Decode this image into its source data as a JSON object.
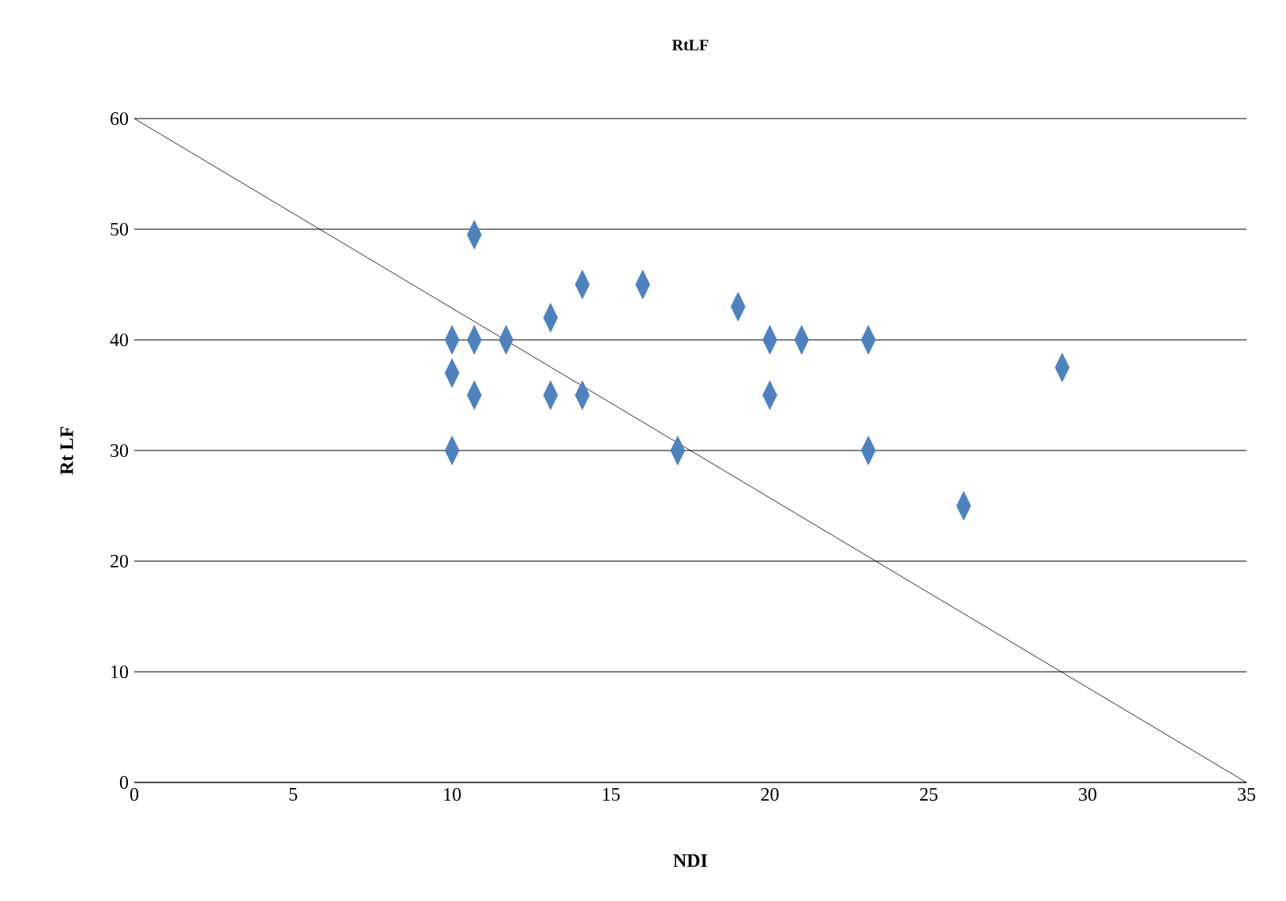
{
  "chart_data": {
    "type": "scatter",
    "title": "RtLF",
    "xlabel": "NDI",
    "ylabel": "Rt LF",
    "xlim": [
      0,
      35
    ],
    "ylim": [
      0,
      60
    ],
    "xticks": [
      0,
      5,
      10,
      15,
      20,
      25,
      30,
      35
    ],
    "yticks": [
      0,
      10,
      20,
      30,
      40,
      50,
      60
    ],
    "grid": "y",
    "series": [
      {
        "type": "scatter",
        "color": "#4f81bd",
        "marker": "diamond",
        "x": [
          10.0,
          10.0,
          10.0,
          10.7,
          10.7,
          10.7,
          11.7,
          13.1,
          13.1,
          14.1,
          14.1,
          16.0,
          17.1,
          19.0,
          20.0,
          20.0,
          21.0,
          23.1,
          23.1,
          26.1,
          29.2
        ],
        "values": [
          40,
          37,
          30,
          49.5,
          40,
          35,
          40,
          42,
          35,
          45,
          35,
          45,
          30,
          43,
          40,
          35,
          40,
          40,
          30,
          25,
          37.5
        ]
      },
      {
        "type": "line",
        "color": "#000000",
        "marker": "none",
        "x": [
          0,
          35
        ],
        "values": [
          60,
          0
        ]
      }
    ]
  }
}
